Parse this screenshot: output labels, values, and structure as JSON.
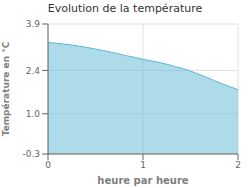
{
  "chart_data": {
    "type": "area",
    "title": "Evolution de la température",
    "xlabel": "heure par heure",
    "ylabel": "Température en °C",
    "x": [
      0.0,
      0.083,
      0.167,
      0.25,
      0.333,
      0.417,
      0.5,
      0.583,
      0.667,
      0.75,
      0.833,
      0.917,
      1.0,
      1.083,
      1.167,
      1.25,
      1.333,
      1.417,
      1.5,
      1.583,
      1.667,
      1.75,
      1.833,
      1.917,
      2.0
    ],
    "values": [
      3.3,
      3.28,
      3.25,
      3.22,
      3.18,
      3.14,
      3.09,
      3.04,
      2.99,
      2.93,
      2.87,
      2.82,
      2.76,
      2.71,
      2.66,
      2.6,
      2.53,
      2.46,
      2.38,
      2.28,
      2.18,
      2.07,
      1.97,
      1.87,
      1.78
    ],
    "color": "#5bb8d4",
    "xlim": [
      0,
      2
    ],
    "xticks": [
      0,
      1,
      2
    ],
    "ylim": [
      -0.3,
      3.9
    ],
    "yticks": [
      -0.3,
      {
        "value": 1.0,
        "label": "1.0"
      },
      2.4,
      3.9
    ],
    "grid": true
  }
}
